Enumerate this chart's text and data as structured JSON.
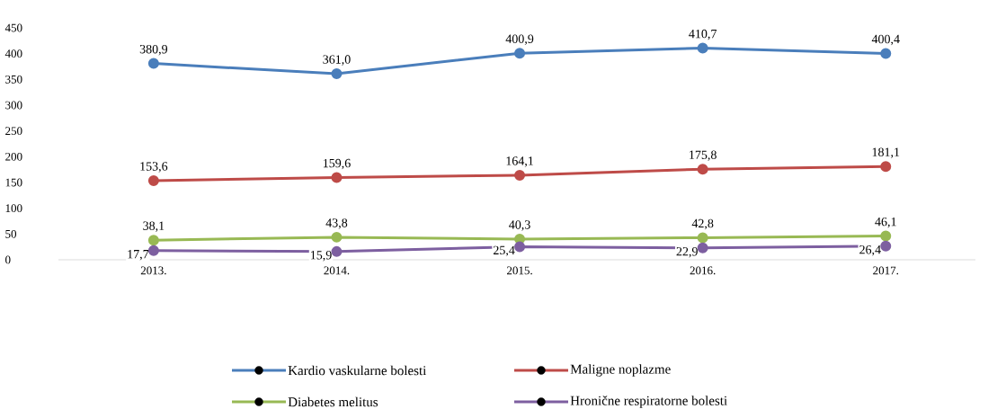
{
  "chart_data": {
    "type": "line",
    "categories": [
      "2013.",
      "2014.",
      "2015.",
      "2016.",
      "2017."
    ],
    "series": [
      {
        "name": "Kardio vaskularne bolesti",
        "color": "#4a7ebb",
        "values": [
          380.9,
          361.0,
          400.9,
          410.7,
          400.4
        ],
        "value_labels": [
          "380,9",
          "361,0",
          "400,9",
          "410,7",
          "400,4"
        ]
      },
      {
        "name": "Maligne noplazme",
        "color": "#be4b48",
        "values": [
          153.6,
          159.6,
          164.1,
          175.8,
          181.1
        ],
        "value_labels": [
          "153,6",
          "159,6",
          "164,1",
          "175,8",
          "181,1"
        ]
      },
      {
        "name": "Diabetes melitus",
        "color": "#98b954",
        "values": [
          38.1,
          43.8,
          40.3,
          42.8,
          46.1
        ],
        "value_labels": [
          "38,1",
          "43,8",
          "40,3",
          "42,8",
          "46,1"
        ]
      },
      {
        "name": "Hronične respiratorne bolesti",
        "color": "#7d5fa0",
        "values": [
          17.7,
          15.9,
          25.4,
          22.9,
          26.4
        ],
        "value_labels": [
          "17,7",
          "15,9",
          "25,4",
          "22,9",
          "26,4"
        ]
      }
    ],
    "ylim": [
      0,
      450
    ],
    "yticks": [
      0,
      50,
      100,
      150,
      200,
      250,
      300,
      350,
      400,
      450
    ],
    "legend": "bottom",
    "marker": "circle",
    "line_style": "solid"
  }
}
